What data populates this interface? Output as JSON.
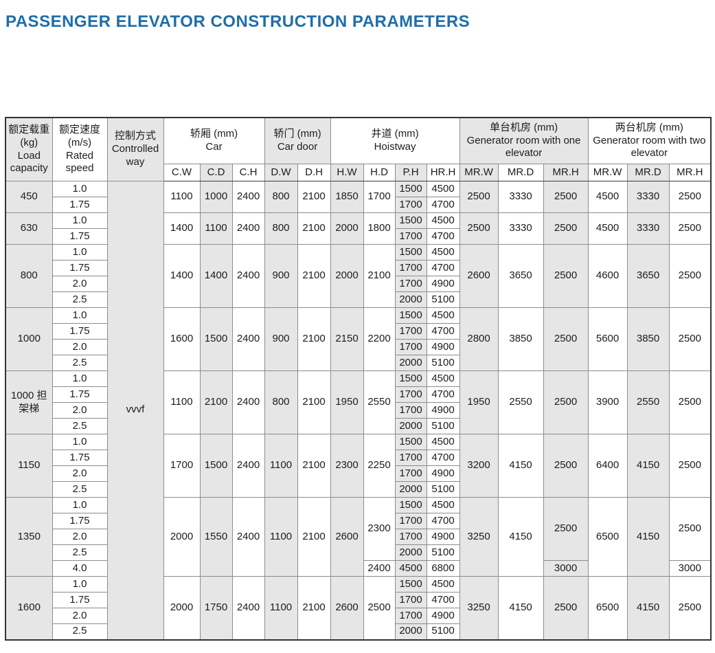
{
  "title": "PASSENGER ELEVATOR CONSTRUCTION PARAMETERS",
  "colors": {
    "title_blue": "#1e6ea9",
    "cell_shade_gray": "#e6e6e6"
  },
  "table": {
    "header": {
      "load_zh": "额定载重",
      "load_unit": "(kg)",
      "load_en": "Load capacity",
      "speed_zh": "额定速度",
      "speed_unit": "(m/s)",
      "speed_en": "Rated speed",
      "control_zh": "控制方式",
      "control_en": "Controlled way",
      "car_zh": "轿厢 (mm)",
      "car_en": "Car",
      "door_zh": "轿门 (mm)",
      "door_en": "Car door",
      "hoistway_zh": "井道 (mm)",
      "hoistway_en": "Hoistway",
      "mr1_zh": "单台机房 (mm)",
      "mr1_en": "Generator room with one elevator",
      "mr2_zh": "两台机房 (mm)",
      "mr2_en": "Generator room with two elevator",
      "cols": [
        "C.W",
        "C.D",
        "C.H",
        "D.W",
        "D.H",
        "H.W",
        "H.D",
        "P.H",
        "HR.H",
        "MR.W",
        "MR.D",
        "MR.H",
        "MR.W",
        "MR.D",
        "MR.H"
      ]
    },
    "controlled_way": "vvvf",
    "groups": [
      {
        "load": "450",
        "speeds": [
          "1.0",
          "1.75"
        ],
        "cw": "1100",
        "cd": "1000",
        "ch": "2400",
        "dw": "800",
        "dh": "2100",
        "hw": "1850",
        "hd": [
          {
            "v": "1700",
            "span": 2
          }
        ],
        "ph_hrh": [
          [
            "1500",
            "4500"
          ],
          [
            "1700",
            "4700"
          ]
        ],
        "mr1w": "2500",
        "mr1d": "3330",
        "mr1h": [
          {
            "v": "2500",
            "span": 2
          }
        ],
        "mr2w": "4500",
        "mr2d": "3330",
        "mr2h": [
          {
            "v": "2500",
            "span": 2
          }
        ]
      },
      {
        "load": "630",
        "speeds": [
          "1.0",
          "1.75"
        ],
        "cw": "1400",
        "cd": "1100",
        "ch": "2400",
        "dw": "800",
        "dh": "2100",
        "hw": "2000",
        "hd": [
          {
            "v": "1800",
            "span": 2
          }
        ],
        "ph_hrh": [
          [
            "1500",
            "4500"
          ],
          [
            "1700",
            "4700"
          ]
        ],
        "mr1w": "2500",
        "mr1d": "3330",
        "mr1h": [
          {
            "v": "2500",
            "span": 2
          }
        ],
        "mr2w": "4500",
        "mr2d": "3330",
        "mr2h": [
          {
            "v": "2500",
            "span": 2
          }
        ]
      },
      {
        "load": "800",
        "speeds": [
          "1.0",
          "1.75",
          "2.0",
          "2.5"
        ],
        "cw": "1400",
        "cd": "1400",
        "ch": "2400",
        "dw": "900",
        "dh": "2100",
        "hw": "2000",
        "hd": [
          {
            "v": "2100",
            "span": 4
          }
        ],
        "ph_hrh": [
          [
            "1500",
            "4500"
          ],
          [
            "1700",
            "4700"
          ],
          [
            "1700",
            "4900"
          ],
          [
            "2000",
            "5100"
          ]
        ],
        "mr1w": "2600",
        "mr1d": "3650",
        "mr1h": [
          {
            "v": "2500",
            "span": 4
          }
        ],
        "mr2w": "4600",
        "mr2d": "3650",
        "mr2h": [
          {
            "v": "2500",
            "span": 4
          }
        ]
      },
      {
        "load": "1000",
        "speeds": [
          "1.0",
          "1.75",
          "2.0",
          "2.5"
        ],
        "cw": "1600",
        "cd": "1500",
        "ch": "2400",
        "dw": "900",
        "dh": "2100",
        "hw": "2150",
        "hd": [
          {
            "v": "2200",
            "span": 4
          }
        ],
        "ph_hrh": [
          [
            "1500",
            "4500"
          ],
          [
            "1700",
            "4700"
          ],
          [
            "1700",
            "4900"
          ],
          [
            "2000",
            "5100"
          ]
        ],
        "mr1w": "2800",
        "mr1d": "3850",
        "mr1h": [
          {
            "v": "2500",
            "span": 4
          }
        ],
        "mr2w": "5600",
        "mr2d": "3850",
        "mr2h": [
          {
            "v": "2500",
            "span": 4
          }
        ]
      },
      {
        "load": "1000 担架梯",
        "speeds": [
          "1.0",
          "1.75",
          "2.0",
          "2.5"
        ],
        "cw": "1100",
        "cd": "2100",
        "ch": "2400",
        "dw": "800",
        "dh": "2100",
        "hw": "1950",
        "hd": [
          {
            "v": "2550",
            "span": 4
          }
        ],
        "ph_hrh": [
          [
            "1500",
            "4500"
          ],
          [
            "1700",
            "4700"
          ],
          [
            "1700",
            "4900"
          ],
          [
            "2000",
            "5100"
          ]
        ],
        "mr1w": "1950",
        "mr1d": "2550",
        "mr1h": [
          {
            "v": "2500",
            "span": 4
          }
        ],
        "mr2w": "3900",
        "mr2d": "2550",
        "mr2h": [
          {
            "v": "2500",
            "span": 4
          }
        ]
      },
      {
        "load": "1150",
        "speeds": [
          "1.0",
          "1.75",
          "2.0",
          "2.5"
        ],
        "cw": "1700",
        "cd": "1500",
        "ch": "2400",
        "dw": "1100",
        "dh": "2100",
        "hw": "2300",
        "hd": [
          {
            "v": "2250",
            "span": 4
          }
        ],
        "ph_hrh": [
          [
            "1500",
            "4500"
          ],
          [
            "1700",
            "4700"
          ],
          [
            "1700",
            "4900"
          ],
          [
            "2000",
            "5100"
          ]
        ],
        "mr1w": "3200",
        "mr1d": "4150",
        "mr1h": [
          {
            "v": "2500",
            "span": 4
          }
        ],
        "mr2w": "6400",
        "mr2d": "4150",
        "mr2h": [
          {
            "v": "2500",
            "span": 4
          }
        ]
      },
      {
        "load": "1350",
        "speeds": [
          "1.0",
          "1.75",
          "2.0",
          "2.5",
          "4.0"
        ],
        "cw": "2000",
        "cd": "1550",
        "ch": "2400",
        "dw": "1100",
        "dh": "2100",
        "hw": "2600",
        "hd": [
          {
            "v": "2300",
            "span": 4
          },
          {
            "v": "2400",
            "span": 1
          }
        ],
        "ph_hrh": [
          [
            "1500",
            "4500"
          ],
          [
            "1700",
            "4700"
          ],
          [
            "1700",
            "4900"
          ],
          [
            "2000",
            "5100"
          ],
          [
            "4500",
            "6800"
          ]
        ],
        "mr1w": "3250",
        "mr1d": "4150",
        "mr1h": [
          {
            "v": "2500",
            "span": 4
          },
          {
            "v": "3000",
            "span": 1
          }
        ],
        "mr2w": "6500",
        "mr2d": "4150",
        "mr2h": [
          {
            "v": "2500",
            "span": 4
          },
          {
            "v": "3000",
            "span": 1
          }
        ]
      },
      {
        "load": "1600",
        "speeds": [
          "1.0",
          "1.75",
          "2.0",
          "2.5"
        ],
        "cw": "2000",
        "cd": "1750",
        "ch": "2400",
        "dw": "1100",
        "dh": "2100",
        "hw": "2600",
        "hd": [
          {
            "v": "2500",
            "span": 4
          }
        ],
        "ph_hrh": [
          [
            "1500",
            "4500"
          ],
          [
            "1700",
            "4700"
          ],
          [
            "1700",
            "4900"
          ],
          [
            "2000",
            "5100"
          ]
        ],
        "mr1w": "3250",
        "mr1d": "4150",
        "mr1h": [
          {
            "v": "2500",
            "span": 4
          }
        ],
        "mr2w": "6500",
        "mr2d": "4150",
        "mr2h": [
          {
            "v": "2500",
            "span": 4
          }
        ]
      }
    ]
  }
}
